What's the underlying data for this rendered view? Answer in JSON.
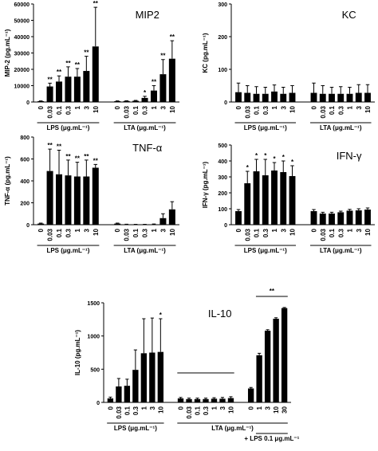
{
  "chart_data": [
    {
      "type": "bar",
      "title": "MIP2",
      "ylabel": "MIP-2 (pg.mL⁻¹)",
      "color": "#000000",
      "ylim": [
        0,
        60000
      ],
      "yticks": [
        0,
        10000,
        20000,
        30000,
        40000,
        50000,
        60000
      ],
      "groups": [
        {
          "label": "LPS (μg.mL⁻¹)",
          "categories": [
            "0",
            "0.03",
            "0.1",
            "0.3",
            "1",
            "3",
            "10"
          ],
          "values": [
            500,
            9500,
            12500,
            15500,
            15500,
            19000,
            34000
          ],
          "errors": [
            200,
            2000,
            3500,
            6000,
            5000,
            9000,
            24000
          ],
          "stars": [
            null,
            "**",
            "**",
            "**",
            "**",
            "**",
            "**"
          ]
        },
        {
          "label": "LTA (μg.mL⁻¹)",
          "categories": [
            "0",
            "0.03",
            "0.1",
            "0.3",
            "1",
            "3",
            "10"
          ],
          "values": [
            500,
            600,
            700,
            2500,
            7000,
            17000,
            26500
          ],
          "errors": [
            200,
            200,
            300,
            1000,
            3000,
            9000,
            11000
          ],
          "stars": [
            null,
            null,
            null,
            "*",
            "**",
            "**",
            "**"
          ]
        }
      ]
    },
    {
      "type": "bar",
      "title": "KC",
      "ylabel": "KC (pg.mL⁻¹)",
      "color": "#000000",
      "ylim": [
        0,
        300
      ],
      "yticks": [
        0,
        100,
        200,
        300
      ],
      "groups": [
        {
          "label": "LPS (μg.mL⁻¹)",
          "categories": [
            "0",
            "0.03",
            "0.1",
            "0.3",
            "1",
            "3",
            "10"
          ],
          "values": [
            30,
            28,
            25,
            25,
            32,
            25,
            28
          ],
          "errors": [
            28,
            22,
            22,
            20,
            20,
            20,
            22
          ],
          "stars": [
            null,
            null,
            null,
            null,
            null,
            null,
            null
          ]
        },
        {
          "label": "LTA (μg.mL⁻¹)",
          "categories": [
            "0",
            "0.03",
            "0.1",
            "0.3",
            "1",
            "3",
            "10"
          ],
          "values": [
            28,
            25,
            25,
            25,
            25,
            28,
            28
          ],
          "errors": [
            30,
            25,
            20,
            22,
            20,
            25,
            25
          ],
          "stars": [
            null,
            null,
            null,
            null,
            null,
            null,
            null
          ]
        }
      ]
    },
    {
      "type": "bar",
      "title": "TNF-α",
      "ylabel": "TNF-α (pg.mL⁻¹)",
      "color": "#000000",
      "ylim": [
        0,
        800
      ],
      "yticks": [
        0,
        200,
        400,
        600,
        800
      ],
      "groups": [
        {
          "label": "LPS (μg.mL⁻¹)",
          "categories": [
            "0",
            "0.03",
            "0.1",
            "0.3",
            "1",
            "3",
            "10"
          ],
          "values": [
            10,
            490,
            460,
            450,
            440,
            440,
            520
          ],
          "errors": [
            5,
            200,
            220,
            140,
            130,
            150,
            30
          ],
          "stars": [
            null,
            "**",
            "**",
            "**",
            "**",
            "**",
            "**"
          ]
        },
        {
          "label": "LTA (μg.mL⁻¹)",
          "categories": [
            "0",
            "0.03",
            "0.1",
            "0.3",
            "1",
            "3",
            "10"
          ],
          "values": [
            10,
            3,
            2,
            2,
            3,
            60,
            140
          ],
          "errors": [
            5,
            2,
            2,
            2,
            3,
            40,
            70
          ],
          "stars": [
            null,
            null,
            null,
            null,
            null,
            null,
            null
          ]
        }
      ]
    },
    {
      "type": "bar",
      "title": "IFN-γ",
      "ylabel": "IFN-γ (pg.mL⁻¹)",
      "color": "#000000",
      "ylim": [
        0,
        500
      ],
      "yticks": [
        0,
        100,
        200,
        300,
        400,
        500
      ],
      "groups": [
        {
          "label": "LPS (μg.mL⁻¹)",
          "categories": [
            "0",
            "0.03",
            "0.1",
            "0.3",
            "1",
            "3",
            "10"
          ],
          "values": [
            85,
            260,
            335,
            310,
            340,
            330,
            305
          ],
          "errors": [
            10,
            75,
            75,
            100,
            50,
            70,
            65
          ],
          "stars": [
            null,
            "*",
            "*",
            "*",
            "*",
            "*",
            "*"
          ]
        },
        {
          "label": "LTA (μg.mL⁻¹)",
          "categories": [
            "0",
            "0.03",
            "0.1",
            "0.3",
            "1",
            "3",
            "10"
          ],
          "values": [
            85,
            70,
            70,
            78,
            88,
            90,
            95
          ],
          "errors": [
            10,
            8,
            8,
            7,
            8,
            10,
            10
          ],
          "stars": [
            null,
            null,
            null,
            null,
            null,
            null,
            null
          ]
        }
      ]
    },
    {
      "type": "bar",
      "title": "IL-10",
      "ylabel": "IL-10 (pg.mL⁻¹)",
      "color": "#000000",
      "ylim": [
        0,
        1500
      ],
      "yticks": [
        0,
        500,
        1000,
        1500
      ],
      "bracket_label": "**",
      "groups": [
        {
          "label": "LPS (μg.mL⁻¹)",
          "categories": [
            "0",
            "0.03",
            "0.1",
            "0.3",
            "1",
            "3",
            "10"
          ],
          "values": [
            60,
            240,
            250,
            490,
            740,
            750,
            760
          ],
          "errors": [
            20,
            120,
            100,
            300,
            520,
            520,
            500
          ],
          "stars": [
            null,
            null,
            null,
            null,
            null,
            null,
            "*"
          ]
        },
        {
          "label": "LTA (μg.mL⁻¹)",
          "categories": [
            "0",
            "0.03",
            "0.1",
            "0.3",
            "1",
            "3",
            "10"
          ],
          "values": [
            60,
            50,
            50,
            50,
            55,
            55,
            65
          ],
          "errors": [
            15,
            15,
            15,
            15,
            15,
            20,
            20
          ],
          "stars": [
            null,
            null,
            null,
            null,
            null,
            null,
            null
          ]
        },
        {
          "label": "+ LPS 0.1 μg.mL⁻¹",
          "categories": [
            "0",
            "1",
            "3",
            "10",
            "30"
          ],
          "values": [
            210,
            710,
            1080,
            1260,
            1420
          ],
          "errors": [
            15,
            30,
            15,
            15,
            10
          ],
          "stars": [
            null,
            null,
            null,
            null,
            null
          ]
        }
      ]
    }
  ]
}
